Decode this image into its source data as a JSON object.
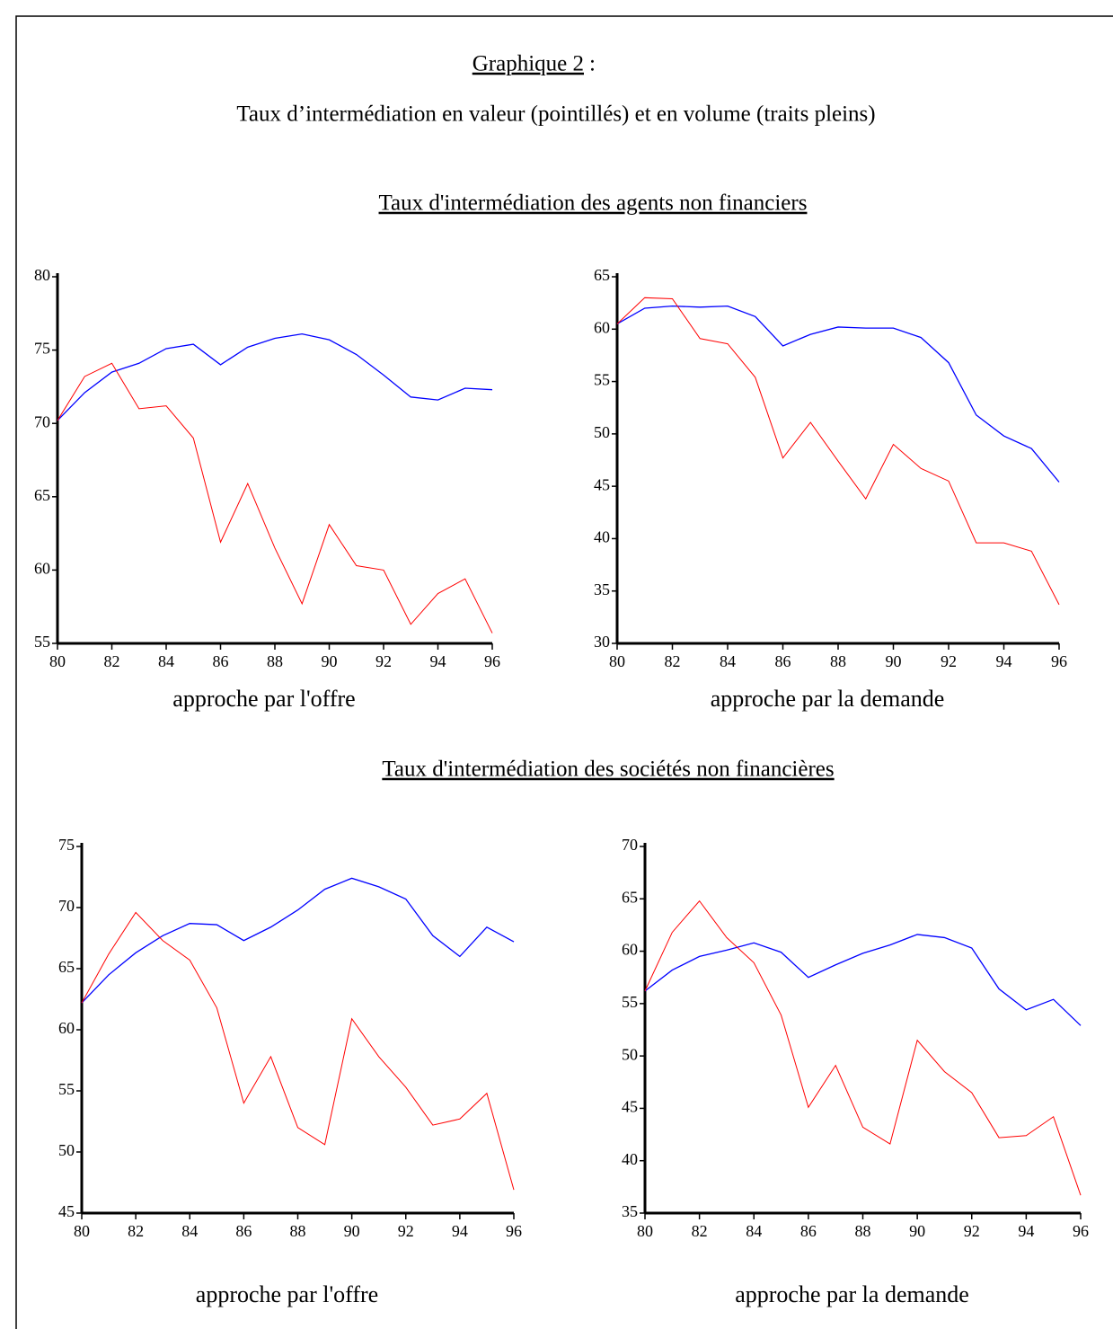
{
  "header": {
    "title": "Graphique 2",
    "suffix": ":",
    "subtitle": "Taux d’intermédiation en valeur (pointillés) et en volume (traits pleins)"
  },
  "sections": [
    "Taux d'intermédiation des agents non financiers",
    "Taux d'intermédiation des sociétés non financières"
  ],
  "chart_data": [
    {
      "type": "line",
      "x_label": "approche par l'offre",
      "x": [
        80,
        81,
        82,
        83,
        84,
        85,
        86,
        87,
        88,
        89,
        90,
        91,
        92,
        93,
        94,
        95,
        96
      ],
      "xlim": [
        80,
        96
      ],
      "xticks": [
        80,
        82,
        84,
        86,
        88,
        90,
        92,
        94,
        96
      ],
      "ylim": [
        55,
        80
      ],
      "yticks": [
        55,
        60,
        65,
        70,
        75,
        80
      ],
      "series": [
        {
          "color": "#0000ff",
          "values": [
            70.2,
            72.1,
            73.5,
            74.1,
            75.1,
            75.4,
            74.0,
            75.2,
            75.8,
            76.1,
            75.7,
            74.7,
            73.3,
            71.8,
            71.6,
            72.4,
            72.3
          ]
        },
        {
          "color": "#ff0000",
          "values": [
            70.2,
            73.2,
            74.1,
            71.0,
            71.2,
            69.0,
            61.9,
            65.9,
            61.5,
            57.7,
            63.1,
            60.3,
            60.0,
            56.3,
            58.4,
            59.4,
            55.7
          ]
        }
      ]
    },
    {
      "type": "line",
      "x_label": "approche par la demande",
      "x": [
        80,
        81,
        82,
        83,
        84,
        85,
        86,
        87,
        88,
        89,
        90,
        91,
        92,
        93,
        94,
        95,
        96
      ],
      "xlim": [
        80,
        96
      ],
      "xticks": [
        80,
        82,
        84,
        86,
        88,
        90,
        92,
        94,
        96
      ],
      "ylim": [
        30,
        65
      ],
      "yticks": [
        30,
        35,
        40,
        45,
        50,
        55,
        60,
        65
      ],
      "series": [
        {
          "color": "#0000ff",
          "values": [
            60.5,
            62.0,
            62.2,
            62.1,
            62.2,
            61.2,
            58.4,
            59.5,
            60.2,
            60.1,
            60.1,
            59.2,
            56.8,
            51.8,
            49.8,
            48.6,
            45.4
          ]
        },
        {
          "color": "#ff0000",
          "values": [
            60.5,
            63.0,
            62.9,
            59.1,
            58.6,
            55.4,
            47.7,
            51.1,
            47.4,
            43.8,
            49.0,
            46.7,
            45.5,
            39.6,
            39.6,
            38.8,
            33.7
          ]
        }
      ]
    },
    {
      "type": "line",
      "x_label": "approche par l'offre",
      "x": [
        80,
        81,
        82,
        83,
        84,
        85,
        86,
        87,
        88,
        89,
        90,
        91,
        92,
        93,
        94,
        95,
        96
      ],
      "xlim": [
        80,
        96
      ],
      "xticks": [
        80,
        82,
        84,
        86,
        88,
        90,
        92,
        94,
        96
      ],
      "ylim": [
        45,
        75
      ],
      "yticks": [
        45,
        50,
        55,
        60,
        65,
        70,
        75
      ],
      "series": [
        {
          "color": "#0000ff",
          "values": [
            62.2,
            64.5,
            66.3,
            67.7,
            68.7,
            68.6,
            67.3,
            68.4,
            69.8,
            71.5,
            72.4,
            71.7,
            70.7,
            67.7,
            66.0,
            68.4,
            67.2
          ]
        },
        {
          "color": "#ff0000",
          "values": [
            62.2,
            66.2,
            69.6,
            67.3,
            65.7,
            61.8,
            54.0,
            57.8,
            52.0,
            50.6,
            60.9,
            57.8,
            55.3,
            52.2,
            52.7,
            54.8,
            46.9
          ]
        }
      ]
    },
    {
      "type": "line",
      "x_label": "approche par la demande",
      "x": [
        80,
        81,
        82,
        83,
        84,
        85,
        86,
        87,
        88,
        89,
        90,
        91,
        92,
        93,
        94,
        95,
        96
      ],
      "xlim": [
        80,
        96
      ],
      "xticks": [
        80,
        82,
        84,
        86,
        88,
        90,
        92,
        94,
        96
      ],
      "ylim": [
        35,
        70
      ],
      "yticks": [
        35,
        40,
        45,
        50,
        55,
        60,
        65,
        70
      ],
      "series": [
        {
          "color": "#0000ff",
          "values": [
            56.2,
            58.2,
            59.5,
            60.1,
            60.8,
            59.9,
            57.5,
            58.7,
            59.8,
            60.6,
            61.6,
            61.3,
            60.3,
            56.4,
            54.4,
            55.4,
            52.9
          ]
        },
        {
          "color": "#ff0000",
          "values": [
            56.2,
            61.8,
            64.8,
            61.3,
            58.9,
            53.9,
            45.1,
            49.1,
            43.2,
            41.6,
            51.5,
            48.5,
            46.5,
            42.2,
            42.4,
            44.2,
            36.7
          ]
        }
      ]
    }
  ]
}
